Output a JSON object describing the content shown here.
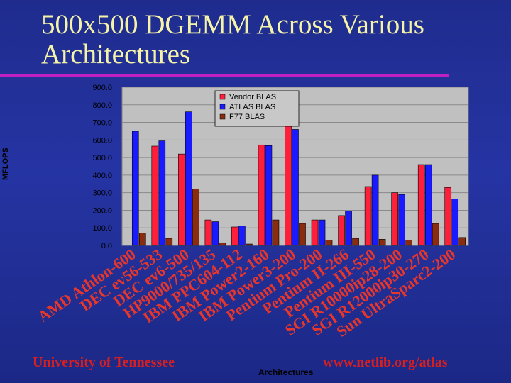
{
  "slide": {
    "title": "500x500 DGEMM Across Various Architectures",
    "footer_left": "University of Tennessee",
    "footer_right": "www.netlib.org/atlas",
    "background_color": "#2232a0",
    "title_color": "#f5f3a8",
    "accent_color": "#c01fc4"
  },
  "chart_data": {
    "type": "bar",
    "title": "500x500 DGEMM Across Various Architectures",
    "xlabel": "Architectures",
    "ylabel": "MFLOPS",
    "ylim": [
      0,
      900
    ],
    "yticks": [
      "0.0",
      "100.0",
      "200.0",
      "300.0",
      "400.0",
      "500.0",
      "600.0",
      "700.0",
      "800.0",
      "900.0"
    ],
    "grid": true,
    "legend_position": "top-center",
    "categories": [
      "AMD Athlon-600",
      "DEC ev56-533",
      "DEC ev6-500",
      "HP9000/735/135",
      "IBM PPC604-112",
      "IBM Power2-160",
      "IBM Power3-200",
      "Pentium Pro-200",
      "Pentium II-266",
      "Pentium III-550",
      "SGI R10000ip28-200",
      "SGI R12000ip30-270",
      "Sun UltraSparc2-200"
    ],
    "series": [
      {
        "name": "Vendor BLAS",
        "color": "#ff1f3a",
        "values": [
          null,
          565,
          520,
          145,
          105,
          572,
          690,
          145,
          170,
          335,
          300,
          460,
          330
        ]
      },
      {
        "name": "ATLAS BLAS",
        "color": "#1a1aff",
        "values": [
          650,
          595,
          760,
          135,
          110,
          568,
          660,
          145,
          195,
          400,
          290,
          460,
          265
        ]
      },
      {
        "name": "F77 BLAS",
        "color": "#8b2c10",
        "values": [
          70,
          40,
          320,
          15,
          8,
          145,
          125,
          30,
          40,
          35,
          30,
          125,
          45
        ]
      }
    ]
  }
}
